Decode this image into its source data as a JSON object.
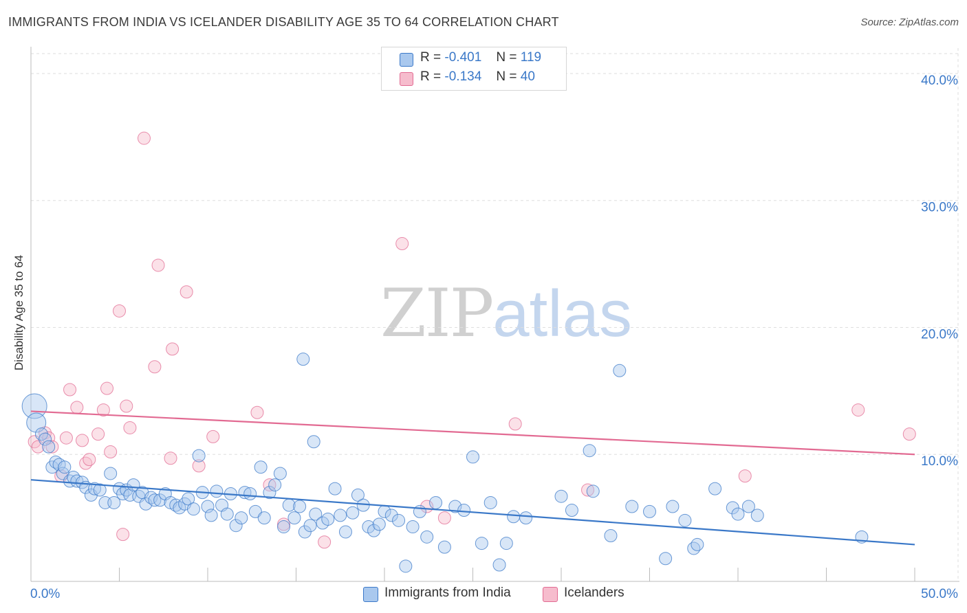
{
  "header": {
    "title": "IMMIGRANTS FROM INDIA VS ICELANDER DISABILITY AGE 35 TO 64 CORRELATION CHART",
    "source": "Source: ZipAtlas.com"
  },
  "watermark": {
    "zip": "ZIP",
    "atlas": "atlas"
  },
  "legend": {
    "rows": [
      {
        "r_label": "R =",
        "r_value": "-0.401",
        "n_label": "N =",
        "n_value": "119"
      },
      {
        "r_label": "R =",
        "r_value": "-0.134",
        "n_label": "N =",
        "n_value": "40"
      }
    ]
  },
  "bottom_legend": {
    "blue_label": "Immigrants from India",
    "pink_label": "Icelanders"
  },
  "colors": {
    "blue": "#3a78c8",
    "blue_fill": "#a9c8ee",
    "pink": "#e26a92",
    "pink_fill": "#f6bccd"
  },
  "chart_data": {
    "type": "scatter",
    "title": "IMMIGRANTS FROM INDIA VS ICELANDER DISABILITY AGE 35 TO 64 CORRELATION CHART",
    "xlabel": "",
    "ylabel": "Disability Age 35 to 64",
    "xlim": [
      0,
      50
    ],
    "ylim": [
      0,
      42
    ],
    "x_tick_labels": [
      "0.0%",
      "50.0%"
    ],
    "y_ticks": [
      10,
      20,
      30,
      40
    ],
    "y_tick_labels": [
      "10.0%",
      "20.0%",
      "30.0%",
      "40.0%"
    ],
    "grid": true,
    "legend_placement": "top-center",
    "series": [
      {
        "name": "Immigrants from India",
        "color": "#3a78c8",
        "trend": {
          "x": [
            0,
            50
          ],
          "y": [
            8.0,
            2.9
          ]
        },
        "points": [
          [
            0.2,
            13.8
          ],
          [
            0.3,
            12.5
          ],
          [
            0.6,
            11.6
          ],
          [
            0.8,
            11.2
          ],
          [
            1.0,
            10.6
          ],
          [
            1.2,
            9.0
          ],
          [
            1.4,
            9.4
          ],
          [
            1.6,
            9.2
          ],
          [
            1.8,
            8.5
          ],
          [
            1.9,
            9.0
          ],
          [
            2.2,
            7.9
          ],
          [
            2.4,
            8.2
          ],
          [
            2.6,
            7.9
          ],
          [
            2.9,
            7.8
          ],
          [
            3.1,
            7.4
          ],
          [
            3.4,
            6.8
          ],
          [
            3.6,
            7.3
          ],
          [
            3.9,
            7.2
          ],
          [
            4.2,
            6.2
          ],
          [
            4.5,
            8.5
          ],
          [
            4.7,
            6.2
          ],
          [
            5.0,
            7.3
          ],
          [
            5.2,
            6.9
          ],
          [
            5.4,
            7.2
          ],
          [
            5.6,
            6.8
          ],
          [
            5.8,
            7.6
          ],
          [
            6.1,
            6.7
          ],
          [
            6.3,
            7.0
          ],
          [
            6.5,
            6.1
          ],
          [
            6.8,
            6.6
          ],
          [
            7.0,
            6.4
          ],
          [
            7.3,
            6.4
          ],
          [
            7.6,
            6.9
          ],
          [
            7.9,
            6.2
          ],
          [
            8.2,
            6.0
          ],
          [
            8.4,
            5.8
          ],
          [
            8.7,
            6.1
          ],
          [
            8.9,
            6.5
          ],
          [
            9.2,
            5.7
          ],
          [
            9.5,
            9.9
          ],
          [
            9.7,
            7.0
          ],
          [
            10.0,
            5.9
          ],
          [
            10.2,
            5.2
          ],
          [
            10.5,
            7.1
          ],
          [
            10.8,
            6.0
          ],
          [
            11.1,
            5.3
          ],
          [
            11.3,
            6.9
          ],
          [
            11.6,
            4.4
          ],
          [
            11.9,
            5.0
          ],
          [
            12.1,
            7.0
          ],
          [
            12.4,
            6.9
          ],
          [
            12.7,
            5.5
          ],
          [
            13.0,
            9.0
          ],
          [
            13.2,
            5.0
          ],
          [
            13.5,
            7.0
          ],
          [
            13.8,
            7.6
          ],
          [
            14.1,
            8.5
          ],
          [
            14.3,
            4.3
          ],
          [
            14.6,
            6.0
          ],
          [
            14.9,
            5.0
          ],
          [
            15.2,
            5.9
          ],
          [
            15.5,
            3.9
          ],
          [
            15.8,
            4.4
          ],
          [
            15.4,
            17.5
          ],
          [
            16.1,
            5.3
          ],
          [
            16.5,
            4.6
          ],
          [
            16.8,
            4.9
          ],
          [
            17.2,
            7.3
          ],
          [
            17.5,
            5.2
          ],
          [
            17.8,
            3.9
          ],
          [
            16.0,
            11.0
          ],
          [
            18.2,
            5.4
          ],
          [
            18.5,
            6.8
          ],
          [
            18.8,
            6.0
          ],
          [
            19.1,
            4.3
          ],
          [
            19.4,
            4.0
          ],
          [
            19.7,
            4.5
          ],
          [
            20.0,
            5.5
          ],
          [
            20.4,
            5.2
          ],
          [
            20.8,
            4.8
          ],
          [
            21.2,
            1.2
          ],
          [
            21.6,
            4.3
          ],
          [
            22.0,
            5.5
          ],
          [
            22.4,
            3.5
          ],
          [
            22.9,
            6.2
          ],
          [
            23.4,
            2.7
          ],
          [
            24.0,
            5.9
          ],
          [
            24.5,
            5.6
          ],
          [
            25.0,
            9.8
          ],
          [
            25.5,
            3.0
          ],
          [
            26.0,
            6.2
          ],
          [
            26.5,
            1.3
          ],
          [
            26.9,
            3.0
          ],
          [
            27.3,
            5.1
          ],
          [
            28.0,
            5.0
          ],
          [
            30.0,
            6.7
          ],
          [
            30.6,
            5.6
          ],
          [
            31.6,
            10.3
          ],
          [
            31.8,
            7.1
          ],
          [
            32.8,
            3.6
          ],
          [
            33.3,
            16.6
          ],
          [
            34.0,
            5.9
          ],
          [
            35.0,
            5.5
          ],
          [
            35.9,
            1.8
          ],
          [
            36.3,
            5.9
          ],
          [
            37.0,
            4.8
          ],
          [
            37.5,
            2.6
          ],
          [
            37.7,
            2.9
          ],
          [
            38.7,
            7.3
          ],
          [
            39.7,
            5.8
          ],
          [
            40.0,
            5.3
          ],
          [
            40.6,
            5.9
          ],
          [
            41.1,
            5.2
          ],
          [
            47.0,
            3.5
          ]
        ]
      },
      {
        "name": "Icelanders",
        "color": "#e26a92",
        "trend": {
          "x": [
            0,
            50
          ],
          "y": [
            13.4,
            10.0
          ]
        },
        "points": [
          [
            0.2,
            11.0
          ],
          [
            0.4,
            10.6
          ],
          [
            0.8,
            11.7
          ],
          [
            1.0,
            11.3
          ],
          [
            1.2,
            10.6
          ],
          [
            1.7,
            8.3
          ],
          [
            2.0,
            11.3
          ],
          [
            2.2,
            15.1
          ],
          [
            2.6,
            13.7
          ],
          [
            2.9,
            11.1
          ],
          [
            3.1,
            9.3
          ],
          [
            3.3,
            9.6
          ],
          [
            3.8,
            11.6
          ],
          [
            4.1,
            13.5
          ],
          [
            4.3,
            15.2
          ],
          [
            4.5,
            10.2
          ],
          [
            5.0,
            21.3
          ],
          [
            5.2,
            3.7
          ],
          [
            5.4,
            13.8
          ],
          [
            5.6,
            12.1
          ],
          [
            6.4,
            34.9
          ],
          [
            7.0,
            16.9
          ],
          [
            7.2,
            24.9
          ],
          [
            7.9,
            9.7
          ],
          [
            8.0,
            18.3
          ],
          [
            8.8,
            22.8
          ],
          [
            9.5,
            9.1
          ],
          [
            10.3,
            11.4
          ],
          [
            12.8,
            13.3
          ],
          [
            13.5,
            7.6
          ],
          [
            14.3,
            4.5
          ],
          [
            16.6,
            3.1
          ],
          [
            21.0,
            26.6
          ],
          [
            22.4,
            5.9
          ],
          [
            23.4,
            5.0
          ],
          [
            27.4,
            12.4
          ],
          [
            31.5,
            7.2
          ],
          [
            40.4,
            8.3
          ],
          [
            46.8,
            13.5
          ],
          [
            49.7,
            11.6
          ]
        ]
      }
    ]
  }
}
